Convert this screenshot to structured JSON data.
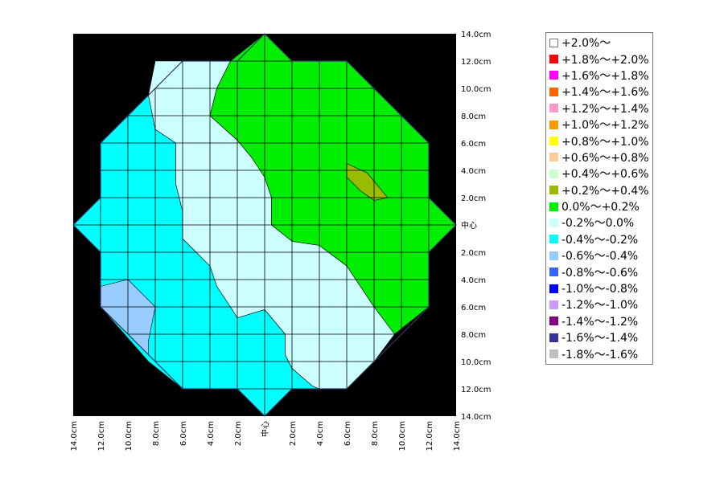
{
  "chart_data": {
    "type": "heatmap",
    "title": "",
    "xlabel": "",
    "ylabel": "",
    "x_ticks": [
      "14.0cm",
      "12.0cm",
      "10.0cm",
      "8.0cm",
      "6.0cm",
      "4.0cm",
      "2.0cm",
      "中心",
      "2.0cm",
      "4.0cm",
      "6.0cm",
      "8.0cm",
      "10.0cm",
      "12.0cm",
      "14.0cm"
    ],
    "y_ticks": [
      "14.0cm",
      "12.0cm",
      "10.0cm",
      "8.0cm",
      "6.0cm",
      "4.0cm",
      "2.0cm",
      "中心",
      "2.0cm",
      "4.0cm",
      "6.0cm",
      "8.0cm",
      "10.0cm",
      "12.0cm",
      "14.0cm"
    ],
    "xlim": [
      -14,
      14
    ],
    "ylim": [
      -14,
      14
    ],
    "grid": true,
    "background": "#000000",
    "legend_position": "right",
    "legend": [
      {
        "label": "+2.0%～",
        "color": "#ffffff"
      },
      {
        "label": "+1.8%～+2.0%",
        "color": "#ff0000"
      },
      {
        "label": "+1.6%～+1.8%",
        "color": "#ff00ff"
      },
      {
        "label": "+1.4%～+1.6%",
        "color": "#ff6600"
      },
      {
        "label": "+1.2%～+1.4%",
        "color": "#ff99cc"
      },
      {
        "label": "+1.0%～+1.2%",
        "color": "#ff9900"
      },
      {
        "label": "+0.8%～+1.0%",
        "color": "#ffff00"
      },
      {
        "label": "+0.6%～+0.8%",
        "color": "#ffcc99"
      },
      {
        "label": "+0.4%～+0.6%",
        "color": "#ccffcc"
      },
      {
        "label": "+0.2%～+0.4%",
        "color": "#99bb00"
      },
      {
        "label": "0.0%～+0.2%",
        "color": "#00ee00"
      },
      {
        "label": "-0.2%～0.0%",
        "color": "#ccffff"
      },
      {
        "label": "-0.4%～-0.2%",
        "color": "#00ffff"
      },
      {
        "label": "-0.6%～-0.4%",
        "color": "#99ccff"
      },
      {
        "label": "-0.8%～-0.6%",
        "color": "#3366ff"
      },
      {
        "label": "-1.0%～-0.8%",
        "color": "#0000ff"
      },
      {
        "label": "-1.2%～-1.0%",
        "color": "#cc99ff"
      },
      {
        "label": "-1.4%～-1.2%",
        "color": "#800080"
      },
      {
        "label": "-1.6%～-1.4%",
        "color": "#333399"
      },
      {
        "label": "-1.8%～-1.6%",
        "color": "#c0c0c0"
      }
    ],
    "regions": [
      {
        "range": "-0.4%～-0.2%",
        "color": "#00ffff",
        "points": [
          [
            -14,
            0
          ],
          [
            -12,
            -2
          ],
          [
            -12,
            -6
          ],
          [
            -8.5,
            -10
          ],
          [
            -6,
            -12
          ],
          [
            -2,
            -12
          ],
          [
            0,
            -14
          ],
          [
            2,
            -12
          ],
          [
            4,
            -12
          ],
          [
            3.5,
            -11.8
          ],
          [
            2,
            -10.5
          ],
          [
            1.5,
            -9.5
          ],
          [
            1.5,
            -8
          ],
          [
            0,
            -6.2
          ],
          [
            -2,
            -6.8
          ],
          [
            -2.5,
            -6
          ],
          [
            -3.5,
            -4.5
          ],
          [
            -4,
            -3
          ],
          [
            -5,
            -2
          ],
          [
            -6,
            -1
          ],
          [
            -6,
            1
          ],
          [
            -6.5,
            3
          ],
          [
            -6.5,
            6
          ],
          [
            -8,
            7
          ],
          [
            -8.5,
            9.5
          ],
          [
            -10,
            8
          ],
          [
            -12,
            6
          ],
          [
            -12,
            2
          ]
        ]
      },
      {
        "range": "-0.2%～0.0%",
        "color": "#ccffff",
        "points": [
          [
            -8.5,
            9.5
          ],
          [
            -8,
            12
          ],
          [
            -2,
            12
          ],
          [
            0,
            14
          ],
          [
            -1.5,
            12.8
          ],
          [
            -2.5,
            12
          ],
          [
            -3.5,
            10
          ],
          [
            -4,
            8
          ],
          [
            -2,
            6.2
          ],
          [
            -1,
            5
          ],
          [
            0,
            3.5
          ],
          [
            0.5,
            2
          ],
          [
            0.5,
            0
          ],
          [
            2,
            -1.2
          ],
          [
            4,
            -1.5
          ],
          [
            6,
            -3
          ],
          [
            8,
            -6
          ],
          [
            9.5,
            -8
          ],
          [
            8,
            -10
          ],
          [
            6,
            -12
          ],
          [
            4,
            -12
          ],
          [
            3.5,
            -11.8
          ],
          [
            2,
            -10.5
          ],
          [
            1.5,
            -9.5
          ],
          [
            1.5,
            -8
          ],
          [
            0,
            -6.2
          ],
          [
            -2,
            -6.8
          ],
          [
            -2.5,
            -6
          ],
          [
            -3.5,
            -4.5
          ],
          [
            -4,
            -3
          ],
          [
            -5,
            -2
          ],
          [
            -6,
            -1
          ],
          [
            -6,
            1
          ],
          [
            -6.5,
            3
          ],
          [
            -6.5,
            6
          ],
          [
            -8,
            7
          ]
        ]
      },
      {
        "range": "0.0%～+0.2%",
        "color": "#00ee00",
        "points": [
          [
            0,
            14
          ],
          [
            2,
            12
          ],
          [
            6,
            12
          ],
          [
            8,
            10
          ],
          [
            12,
            6
          ],
          [
            12,
            2
          ],
          [
            14,
            0
          ],
          [
            12,
            -2
          ],
          [
            12,
            -6
          ],
          [
            9.5,
            -8
          ],
          [
            8,
            -6
          ],
          [
            6,
            -3
          ],
          [
            4,
            -1.5
          ],
          [
            2,
            -1.2
          ],
          [
            0.5,
            0
          ],
          [
            0.5,
            2
          ],
          [
            0,
            3.5
          ],
          [
            -1,
            5
          ],
          [
            -2,
            6.2
          ],
          [
            -4,
            8
          ],
          [
            -3.5,
            10
          ],
          [
            -2.5,
            12
          ],
          [
            -1.5,
            12.8
          ]
        ]
      },
      {
        "range": "+0.2%～+0.4%",
        "color": "#99bb00",
        "points": [
          [
            6,
            4.5
          ],
          [
            7.5,
            3.8
          ],
          [
            9,
            2
          ],
          [
            8,
            1.8
          ],
          [
            7,
            2.5
          ],
          [
            6,
            3.5
          ]
        ]
      },
      {
        "range": "-0.6%～-0.4%",
        "color": "#99ccff",
        "points": [
          [
            -12,
            -4.5
          ],
          [
            -10,
            -4
          ],
          [
            -8,
            -6
          ],
          [
            -8.5,
            -8.5
          ],
          [
            -8.5,
            -9.5
          ],
          [
            -10,
            -8
          ],
          [
            -12,
            -6
          ]
        ]
      }
    ]
  }
}
